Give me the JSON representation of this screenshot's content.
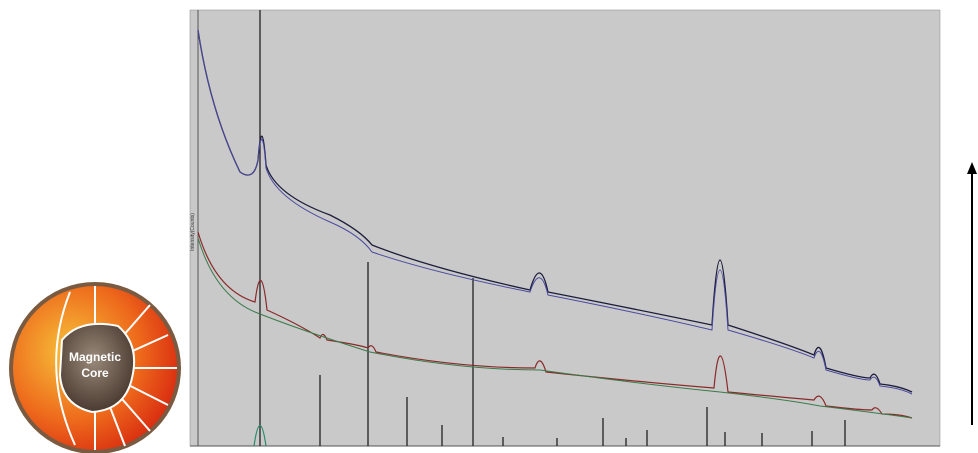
{
  "figure": {
    "core_label_line1": "Magnetic",
    "core_label_line2": "Core",
    "y_axis_label": "Intensity(Counts)"
  }
}
